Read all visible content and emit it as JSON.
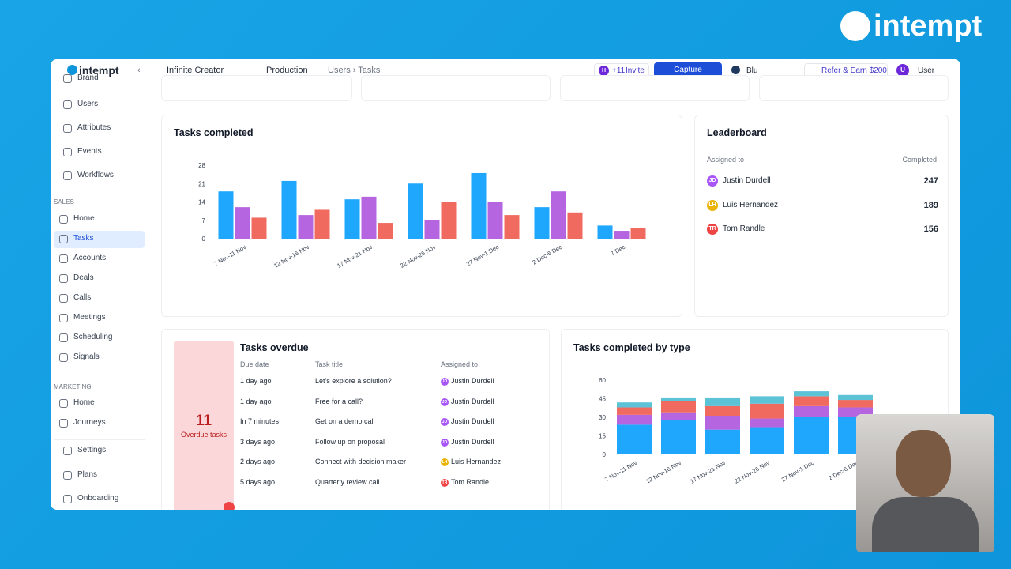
{
  "brand": {
    "logo": "intempt"
  },
  "topbar": {
    "logo": "intempt",
    "workspace": "Infinite Creator",
    "environment": "Production",
    "breadcrumb": "Users › Tasks",
    "invite_avatar": "H",
    "invite_count": "+11",
    "invite": "Invite",
    "capture": "Capture",
    "theme": "Blu",
    "referral": "Refer & Earn $200",
    "user_avatar": "U",
    "user": "User"
  },
  "sidebar": {
    "items": [
      "Brand",
      "Users",
      "Attributes",
      "Events",
      "Workflows"
    ],
    "sales": {
      "label": "SALES",
      "items": [
        "Home",
        "Tasks",
        "Accounts",
        "Deals",
        "Calls",
        "Meetings",
        "Scheduling",
        "Signals"
      ]
    },
    "marketing": {
      "label": "MARKETING",
      "items": [
        "Home",
        "Journeys"
      ]
    },
    "footer": [
      "Settings",
      "Plans",
      "Onboarding"
    ]
  },
  "tasks_completed": {
    "title": "Tasks completed",
    "chart": {
      "type": "bar",
      "categories": [
        "7 Nov-11 Nov",
        "12 Nov-16 Nov",
        "17 Nov-21 Nov",
        "22 Nov-26 Nov",
        "27 Nov-1 Dec",
        "2 Dec-6 Dec",
        "7 Dec"
      ],
      "series": [
        {
          "color": "#1ea7fd",
          "values": [
            18,
            22,
            15,
            21,
            25,
            12,
            5
          ]
        },
        {
          "color": "#b565e0",
          "values": [
            12,
            9,
            16,
            7,
            14,
            18,
            3
          ]
        },
        {
          "color": "#f06a5f",
          "values": [
            8,
            11,
            6,
            14,
            9,
            10,
            4
          ]
        }
      ],
      "ylim": [
        0,
        28
      ],
      "yticks": [
        0,
        7,
        14,
        21,
        28
      ]
    }
  },
  "leaderboard": {
    "title": "Leaderboard",
    "columns": [
      "Assigned to",
      "Completed"
    ],
    "rows": [
      {
        "initials": "JD",
        "name": "Justin Durdell",
        "completed": 247
      },
      {
        "initials": "LH",
        "name": "Luis Hernandez",
        "completed": 189
      },
      {
        "initials": "TR",
        "name": "Tom Randle",
        "completed": 156
      }
    ]
  },
  "tasks_overdue": {
    "title": "Tasks overdue",
    "count": 11,
    "count_label": "Overdue tasks",
    "columns": [
      "Due date",
      "Task title",
      "Assigned to"
    ],
    "rows": [
      {
        "due": "1 day ago",
        "title": "Let's explore a solution?",
        "initials": "JD",
        "assignee": "Justin Durdell"
      },
      {
        "due": "1 day ago",
        "title": "Free for a call?",
        "initials": "JD",
        "assignee": "Justin Durdell"
      },
      {
        "due": "In 7 minutes",
        "title": "Get on a demo call",
        "initials": "JD",
        "assignee": "Justin Durdell"
      },
      {
        "due": "3 days ago",
        "title": "Follow up on proposal",
        "initials": "JD",
        "assignee": "Justin Durdell"
      },
      {
        "due": "2 days ago",
        "title": "Connect with decision maker",
        "initials": "LH",
        "assignee": "Luis Hernandez"
      },
      {
        "due": "5 days ago",
        "title": "Quarterly review call",
        "initials": "TR",
        "assignee": "Tom Randle"
      }
    ]
  },
  "tasks_by_type": {
    "title": "Tasks completed by type",
    "chart": {
      "type": "stacked_bar",
      "categories": [
        "7 Nov-11 Nov",
        "12 Nov-16 Nov",
        "17 Nov-21 Nov",
        "22 Nov-26 Nov",
        "27 Nov-1 Dec",
        "2 Dec-6 Dec"
      ],
      "series": [
        {
          "color": "#1ea7fd",
          "values": [
            24,
            28,
            20,
            22,
            30,
            30
          ]
        },
        {
          "color": "#b565e0",
          "values": [
            8,
            6,
            11,
            7,
            9,
            8
          ]
        },
        {
          "color": "#f06a5f",
          "values": [
            6,
            9,
            8,
            12,
            8,
            6
          ]
        },
        {
          "color": "#5cc3d6",
          "values": [
            4,
            3,
            7,
            6,
            4,
            4
          ]
        }
      ],
      "ylim": [
        0,
        60
      ],
      "yticks": [
        0,
        15,
        30,
        45,
        60
      ]
    }
  }
}
